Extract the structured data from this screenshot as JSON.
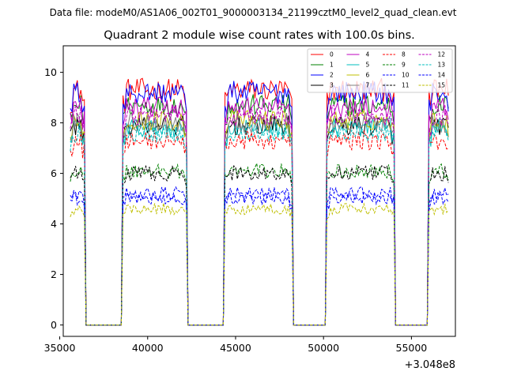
{
  "chart_data": {
    "type": "line",
    "suptitle": "Data file: modeM0/AS1A06_002T01_9000003134_21199cztM0_level2_quad_clean.evt",
    "title": "Quadrant 2 module wise count rates with 100.0s bins.",
    "xlabel": "",
    "ylabel": "",
    "x_offset_label": "+3.048e8",
    "xlim": [
      35200,
      57500
    ],
    "ylim": [
      -0.45,
      11.05
    ],
    "x_ticks": [
      35000,
      40000,
      45000,
      50000,
      55000
    ],
    "y_ticks": [
      0,
      2,
      4,
      6,
      8,
      10
    ],
    "x_tick_labels": [
      "35000",
      "40000",
      "45000",
      "50000",
      "55000"
    ],
    "y_tick_labels": [
      "0",
      "2",
      "4",
      "6",
      "8",
      "10"
    ],
    "legend_position": "top-right",
    "segments": [
      [
        35600,
        36400
      ],
      [
        38600,
        42200
      ],
      [
        44400,
        48200
      ],
      [
        50200,
        54000
      ],
      [
        56000,
        57150
      ]
    ],
    "series": [
      {
        "name": "0",
        "color": "#ff0000",
        "style": "solid",
        "level": 9.3
      },
      {
        "name": "1",
        "color": "#008000",
        "style": "solid",
        "level": 8.7
      },
      {
        "name": "2",
        "color": "#0000ff",
        "style": "solid",
        "level": 9.2
      },
      {
        "name": "3",
        "color": "#000000",
        "style": "solid",
        "level": 7.9
      },
      {
        "name": "4",
        "color": "#bf00bf",
        "style": "solid",
        "level": 8.6
      },
      {
        "name": "5",
        "color": "#00bfbf",
        "style": "solid",
        "level": 7.8
      },
      {
        "name": "6",
        "color": "#bfbf00",
        "style": "solid",
        "level": 8.1
      },
      {
        "name": "7",
        "color": "#808080",
        "style": "solid",
        "level": 8.0
      },
      {
        "name": "8",
        "color": "#ff0000",
        "style": "dashed",
        "level": 7.3
      },
      {
        "name": "9",
        "color": "#008000",
        "style": "dashed",
        "level": 6.1
      },
      {
        "name": "10",
        "color": "#0000ff",
        "style": "dashed",
        "level": 5.2
      },
      {
        "name": "11",
        "color": "#000000",
        "style": "dashed",
        "level": 6.0
      },
      {
        "name": "12",
        "color": "#bf00bf",
        "style": "dashed",
        "level": 8.3
      },
      {
        "name": "13",
        "color": "#00bfbf",
        "style": "dashed",
        "level": 7.6
      },
      {
        "name": "14",
        "color": "#0000ff",
        "style": "dashed",
        "level": 5.0
      },
      {
        "name": "15",
        "color": "#bfbf00",
        "style": "dashed",
        "level": 4.6
      }
    ]
  }
}
